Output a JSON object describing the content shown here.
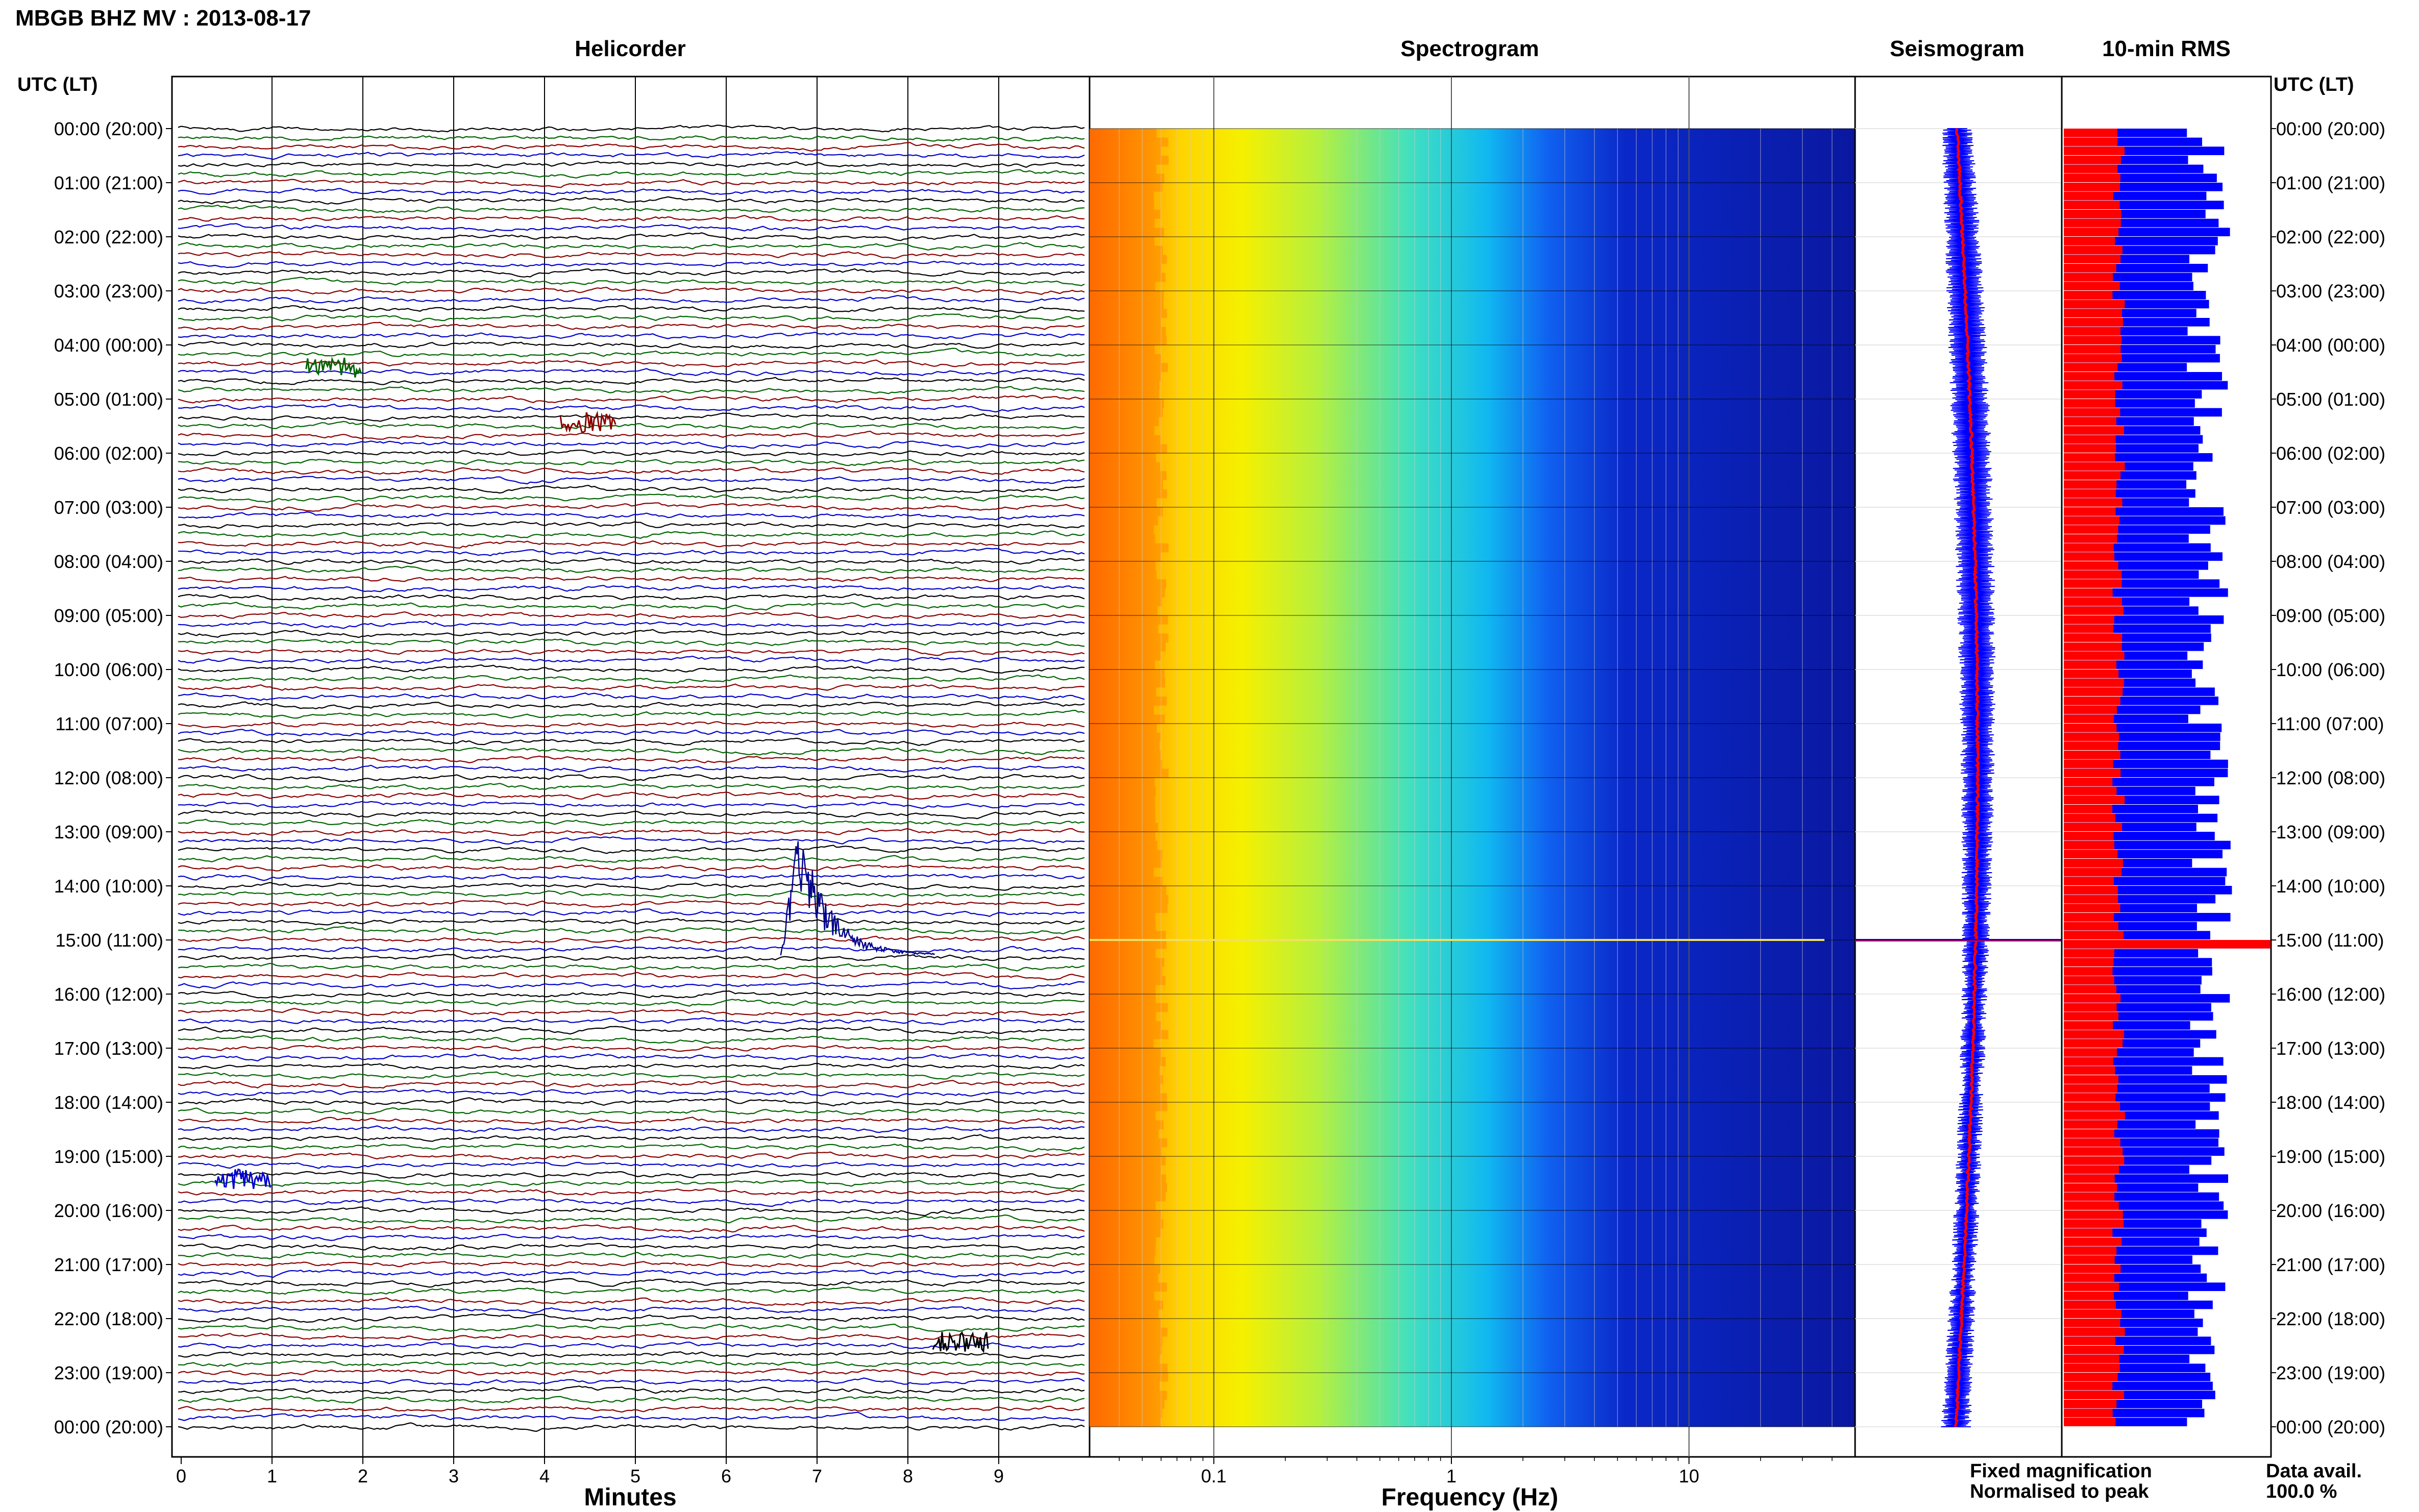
{
  "station_title": "MBGB BHZ MV : 2013-08-17",
  "panels": {
    "helicorder": "Helicorder",
    "spectrogram": "Spectrogram",
    "seismogram": "Seismogram",
    "rms": "10-min RMS"
  },
  "axis_header": "UTC (LT)",
  "row_labels": [
    "00:00 (20:00)",
    "01:00 (21:00)",
    "02:00 (22:00)",
    "03:00 (23:00)",
    "04:00 (00:00)",
    "05:00 (01:00)",
    "06:00 (02:00)",
    "07:00 (03:00)",
    "08:00 (04:00)",
    "09:00 (05:00)",
    "10:00 (06:00)",
    "11:00 (07:00)",
    "12:00 (08:00)",
    "13:00 (09:00)",
    "14:00 (10:00)",
    "15:00 (11:00)",
    "16:00 (12:00)",
    "17:00 (13:00)",
    "18:00 (14:00)",
    "19:00 (15:00)",
    "20:00 (16:00)",
    "21:00 (17:00)",
    "22:00 (18:00)",
    "23:00 (19:00)",
    "00:00 (20:00)"
  ],
  "xlabel_minutes": "Minutes",
  "xlabel_frequency": "Frequency (Hz)",
  "minute_ticks": [
    "0",
    "1",
    "2",
    "3",
    "4",
    "5",
    "6",
    "7",
    "8",
    "9"
  ],
  "freq_ticks": [
    "0.1",
    "1",
    "10"
  ],
  "legend": {
    "fixed": "Fixed magnification",
    "normalised": "Normalised to peak",
    "avail_label": "Data avail.",
    "avail_value": "100.0 %"
  },
  "colors": {
    "fixed": "#0000ff",
    "normalised": "#ff0000",
    "trace_cycle": [
      "#000000",
      "#006400",
      "#8b0000",
      "#0000cd"
    ]
  },
  "chart_data": [
    {
      "type": "line",
      "title": "Helicorder",
      "xlabel": "Minutes",
      "x_range": [
        0,
        10
      ],
      "rows_per_hour": 6,
      "event": {
        "hour_utc": 14,
        "start_minute": 6.6,
        "peak_minute": 6.9,
        "end_minute": 8.3
      },
      "minor_disturbances": [
        {
          "hour_utc": 4,
          "minute": 1.6
        },
        {
          "hour_utc": 5,
          "minute": 4.4
        },
        {
          "hour_utc": 19,
          "minute": 0.6
        },
        {
          "hour_utc": 22,
          "minute": 8.5
        }
      ]
    },
    {
      "type": "heatmap",
      "title": "Spectrogram",
      "xlabel": "Frequency (Hz)",
      "x_scale": "log",
      "x_range": [
        0.03,
        50
      ],
      "bands_hz": [
        {
          "from": 0.03,
          "to": 0.06,
          "level": "high"
        },
        {
          "from": 0.06,
          "to": 0.12,
          "level": "medium-high"
        },
        {
          "from": 0.12,
          "to": 0.5,
          "level": "medium"
        },
        {
          "from": 0.5,
          "to": 2,
          "level": "low"
        },
        {
          "from": 2,
          "to": 50,
          "level": "very low"
        }
      ],
      "broadband_line_hour_utc": 15.0
    },
    {
      "type": "line",
      "title": "Seismogram",
      "series": [
        {
          "name": "Fixed magnification",
          "color": "#0000ff"
        },
        {
          "name": "Normalised to peak",
          "color": "#ff0000"
        }
      ],
      "spike_hour_utc": 15.0
    },
    {
      "type": "bar",
      "title": "10-min RMS",
      "bars_per_hour": 6,
      "series": [
        {
          "name": "Fixed magnification",
          "color": "#0000ff"
        },
        {
          "name": "Normalised to peak",
          "color": "#ff0000"
        }
      ],
      "peak_hour_utc": 15.0
    }
  ]
}
